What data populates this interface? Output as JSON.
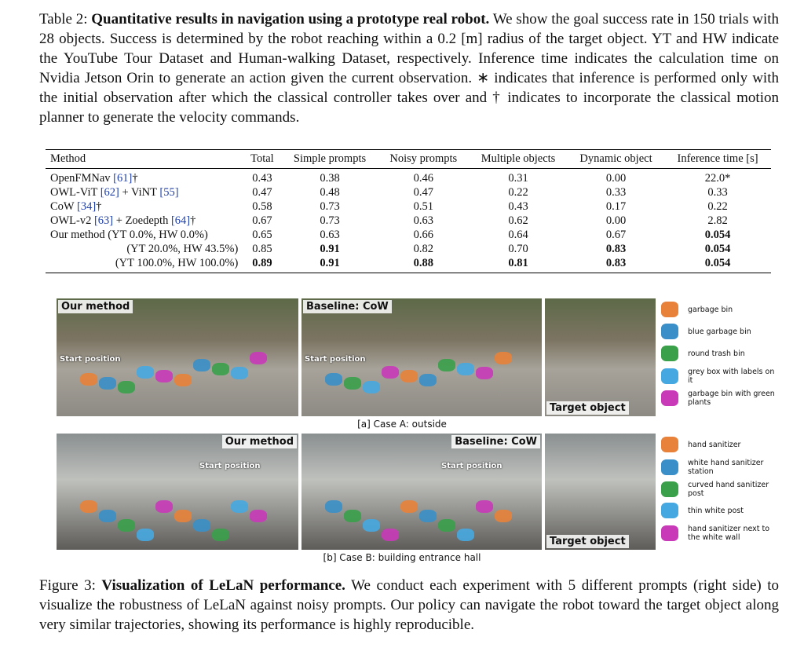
{
  "table_caption": {
    "label": "Table 2:",
    "title": "Quantitative results in navigation using a prototype real robot.",
    "text": "We show the goal success rate in 150 trials with 28 objects. Success is determined by the robot reaching within a 0.2 [m] radius of the target object. YT and HW indicate the YouTube Tour Dataset and Human-walking Dataset, respectively. Inference time indicates the calculation time on Nvidia Jetson Orin to generate an action given the current observation. ∗ indicates that inference is performed only with the initial observation after which the classical controller takes over and † indicates to incorporate the classical motion planner to generate the velocity commands."
  },
  "table": {
    "header": [
      "Method",
      "Total",
      "Simple prompts",
      "Noisy prompts",
      "Multiple objects",
      "Dynamic object",
      "Inference time [s]"
    ],
    "rows": [
      [
        "OpenFMNav [61]†",
        "0.43",
        "0.38",
        "0.46",
        "0.31",
        "0.00",
        "22.0*"
      ],
      [
        "OWL-ViT [62] + ViNT [55]",
        "0.47",
        "0.48",
        "0.47",
        "0.22",
        "0.33",
        "0.33"
      ],
      [
        "CoW [34]†",
        "0.58",
        "0.73",
        "0.51",
        "0.43",
        "0.17",
        "0.22"
      ],
      [
        "OWL-v2 [63] + Zoedepth [64]†",
        "0.67",
        "0.73",
        "0.63",
        "0.62",
        "0.00",
        "2.82"
      ],
      [
        "Our method (YT 0.0%, HW 0.0%)",
        "0.65",
        "0.63",
        "0.66",
        "0.64",
        "0.67",
        "0.054"
      ],
      [
        "(YT 20.0%, HW 43.5%)",
        "0.85",
        "0.91",
        "0.82",
        "0.70",
        "0.83",
        "0.054"
      ],
      [
        "(YT 100.0%, HW 100.0%)",
        "0.89",
        "0.91",
        "0.88",
        "0.81",
        "0.83",
        "0.054"
      ]
    ],
    "bold": [
      [],
      [],
      [],
      [],
      [
        6
      ],
      [
        2,
        5,
        6
      ],
      [
        1,
        2,
        3,
        4,
        5,
        6
      ]
    ]
  },
  "figure": {
    "case_a": {
      "panels": [
        {
          "label": "Our method",
          "start": "Start position"
        },
        {
          "label": "Baseline: CoW",
          "start": "Start position"
        },
        {
          "label": "Target object"
        }
      ],
      "legend": [
        {
          "text": "garbage bin",
          "color": "#e8823a"
        },
        {
          "text": "blue garbage bin",
          "color": "#3a8fc8"
        },
        {
          "text": "round trash bin",
          "color": "#3aa04a"
        },
        {
          "text": "grey box with labels on it",
          "color": "#46a8e0"
        },
        {
          "text": "garbage bin with green plants",
          "color": "#c83ab8"
        }
      ],
      "caption": "[a] Case A: outside"
    },
    "case_b": {
      "panels": [
        {
          "label": "Our method",
          "start": "Start position"
        },
        {
          "label": "Baseline: CoW",
          "start": "Start position"
        },
        {
          "label": "Target object"
        }
      ],
      "legend": [
        {
          "text": "hand sanitizer",
          "color": "#e8823a"
        },
        {
          "text": "white hand sanitizer station",
          "color": "#3a8fc8"
        },
        {
          "text": "curved hand sanitizer post",
          "color": "#3aa04a"
        },
        {
          "text": "thin white post",
          "color": "#46a8e0"
        },
        {
          "text": "hand sanitizer next to the white wall",
          "color": "#c83ab8"
        }
      ],
      "caption": "[b] Case B: building entrance hall"
    },
    "caption": {
      "label": "Figure 3:",
      "title": "Visualization of LeLaN performance.",
      "text": "We conduct each experiment with 5 different prompts (right side) to visualize the robustness of LeLaN against noisy prompts. Our policy can navigate the robot toward the target object along very similar trajectories, showing its performance is highly reproducible."
    }
  }
}
